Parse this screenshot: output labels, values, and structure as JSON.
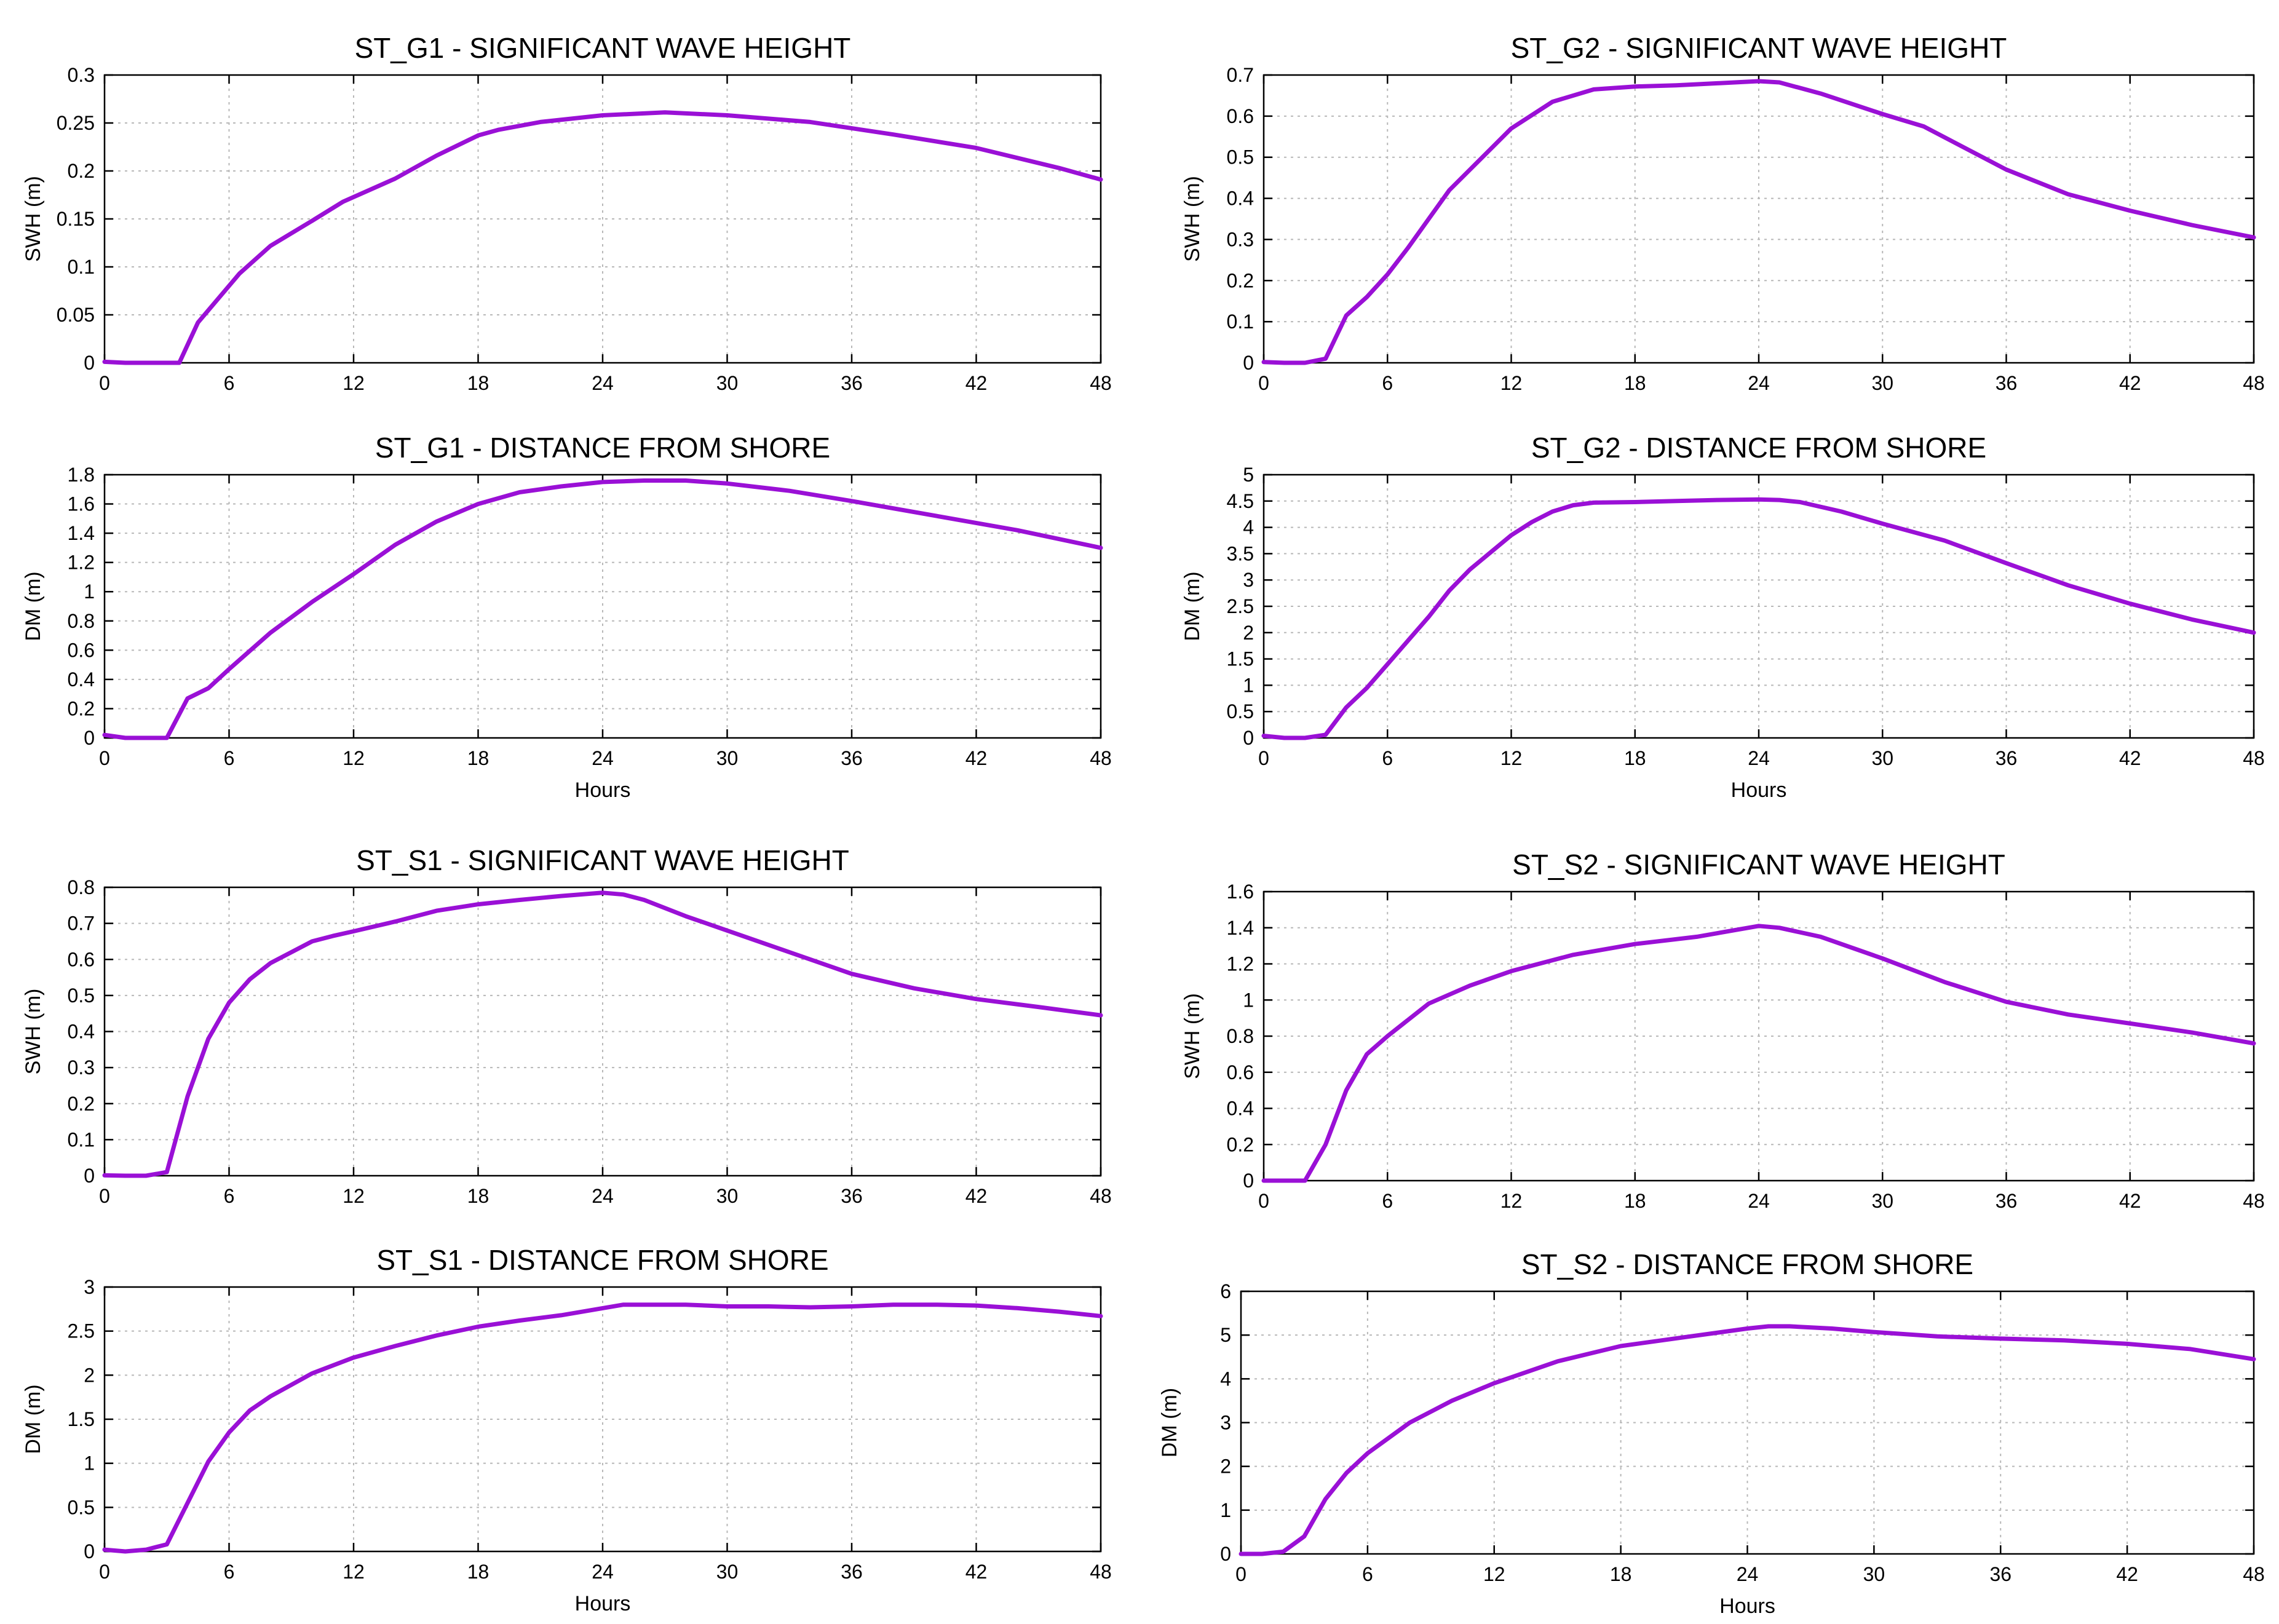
{
  "figure": {
    "line_color": "#9a10d6"
  },
  "chart_data": [
    {
      "id": "st_g1_swh",
      "type": "line",
      "title": "ST_G1 - SIGNIFICANT WAVE HEIGHT",
      "ylabel": "SWH (m)",
      "xlabel": "",
      "xlim": [
        0,
        48
      ],
      "ylim": [
        0,
        0.3
      ],
      "xticks": [
        0,
        6,
        12,
        18,
        24,
        30,
        36,
        42,
        48
      ],
      "yticks": [
        0,
        0.05,
        0.1,
        0.15,
        0.2,
        0.25,
        0.3
      ],
      "grid": true,
      "series": [
        {
          "name": "SWH",
          "x": [
            0,
            1,
            2,
            3,
            3.6,
            4.5,
            6.5,
            8,
            10,
            11.5,
            14,
            16,
            18,
            19,
            21,
            24,
            27,
            30,
            34,
            38,
            42,
            46,
            48
          ],
          "y": [
            0.001,
            0,
            0,
            0,
            0,
            0.042,
            0.093,
            0.122,
            0.148,
            0.168,
            0.192,
            0.216,
            0.237,
            0.243,
            0.251,
            0.258,
            0.261,
            0.258,
            0.251,
            0.238,
            0.224,
            0.203,
            0.191
          ]
        }
      ]
    },
    {
      "id": "st_g2_swh",
      "type": "line",
      "title": "ST_G2 - SIGNIFICANT WAVE HEIGHT",
      "ylabel": "SWH (m)",
      "xlabel": "",
      "xlim": [
        0,
        48
      ],
      "ylim": [
        0,
        0.7
      ],
      "xticks": [
        0,
        6,
        12,
        18,
        24,
        30,
        36,
        42,
        48
      ],
      "yticks": [
        0,
        0.1,
        0.2,
        0.3,
        0.4,
        0.5,
        0.6,
        0.7
      ],
      "grid": true,
      "series": [
        {
          "name": "SWH",
          "x": [
            0,
            1,
            2,
            3,
            4,
            5,
            6,
            7,
            8,
            9,
            10,
            12,
            14,
            16,
            18,
            20,
            22,
            24,
            25,
            27,
            30,
            32,
            36,
            39,
            42,
            45,
            48
          ],
          "y": [
            0.002,
            0,
            0,
            0.01,
            0.115,
            0.16,
            0.215,
            0.28,
            0.35,
            0.42,
            0.47,
            0.57,
            0.635,
            0.665,
            0.672,
            0.675,
            0.68,
            0.685,
            0.682,
            0.655,
            0.605,
            0.575,
            0.47,
            0.41,
            0.37,
            0.335,
            0.305
          ]
        }
      ]
    },
    {
      "id": "st_g1_dm",
      "type": "line",
      "title": "ST_G1 -  DISTANCE FROM SHORE",
      "ylabel": "DM (m)",
      "xlabel": "Hours",
      "xlim": [
        0,
        48
      ],
      "ylim": [
        0,
        1.8
      ],
      "xticks": [
        0,
        6,
        12,
        18,
        24,
        30,
        36,
        42,
        48
      ],
      "yticks": [
        0,
        0.2,
        0.4,
        0.6,
        0.8,
        1,
        1.2,
        1.4,
        1.6,
        1.8
      ],
      "grid": true,
      "series": [
        {
          "name": "DM",
          "x": [
            0,
            1,
            2,
            3,
            4,
            5,
            6,
            8,
            10,
            12,
            14,
            16,
            18,
            20,
            22,
            24,
            26,
            28,
            30,
            33,
            36,
            40,
            44,
            48
          ],
          "y": [
            0.02,
            0,
            0,
            0,
            0.27,
            0.34,
            0.47,
            0.72,
            0.93,
            1.12,
            1.32,
            1.48,
            1.6,
            1.68,
            1.72,
            1.75,
            1.76,
            1.76,
            1.74,
            1.69,
            1.62,
            1.52,
            1.42,
            1.3
          ]
        }
      ]
    },
    {
      "id": "st_g2_dm",
      "type": "line",
      "title": "ST_G2 -  DISTANCE FROM SHORE",
      "ylabel": "DM (m)",
      "xlabel": "Hours",
      "xlim": [
        0,
        48
      ],
      "ylim": [
        0,
        5
      ],
      "xticks": [
        0,
        6,
        12,
        18,
        24,
        30,
        36,
        42,
        48
      ],
      "yticks": [
        0,
        0.5,
        1,
        1.5,
        2,
        2.5,
        3,
        3.5,
        4,
        4.5,
        5
      ],
      "grid": true,
      "series": [
        {
          "name": "DM",
          "x": [
            0,
            1,
            2,
            3,
            4,
            5,
            6,
            7,
            8,
            9,
            10,
            12,
            13,
            14,
            15,
            16,
            18,
            20,
            22,
            24,
            25,
            26,
            28,
            30,
            33,
            36,
            39,
            42,
            45,
            48
          ],
          "y": [
            0.04,
            0,
            0,
            0.06,
            0.58,
            0.95,
            1.4,
            1.85,
            2.3,
            2.8,
            3.2,
            3.85,
            4.1,
            4.3,
            4.42,
            4.47,
            4.48,
            4.5,
            4.52,
            4.53,
            4.52,
            4.48,
            4.3,
            4.07,
            3.75,
            3.32,
            2.9,
            2.55,
            2.25,
            2.0
          ]
        }
      ]
    },
    {
      "id": "st_s1_swh",
      "type": "line",
      "title": "ST_S1 - SIGNIFICANT WAVE HEIGHT",
      "ylabel": "SWH (m)",
      "xlabel": "",
      "xlim": [
        0,
        48
      ],
      "ylim": [
        0,
        0.8
      ],
      "xticks": [
        0,
        6,
        12,
        18,
        24,
        30,
        36,
        42,
        48
      ],
      "yticks": [
        0,
        0.1,
        0.2,
        0.3,
        0.4,
        0.5,
        0.6,
        0.7,
        0.8
      ],
      "grid": true,
      "series": [
        {
          "name": "SWH",
          "x": [
            0,
            1,
            2,
            3,
            4,
            5,
            6,
            7,
            8,
            9,
            10,
            11,
            12,
            14,
            16,
            18,
            20,
            22,
            24,
            25,
            26,
            28,
            30,
            33,
            36,
            39,
            42,
            45,
            48
          ],
          "y": [
            0.001,
            0,
            0,
            0.01,
            0.22,
            0.38,
            0.48,
            0.545,
            0.59,
            0.62,
            0.65,
            0.665,
            0.678,
            0.705,
            0.735,
            0.753,
            0.765,
            0.776,
            0.785,
            0.78,
            0.765,
            0.72,
            0.68,
            0.62,
            0.56,
            0.52,
            0.49,
            0.468,
            0.445
          ]
        }
      ]
    },
    {
      "id": "st_s2_swh",
      "type": "line",
      "title": "ST_S2 - SIGNIFICANT WAVE HEIGHT",
      "ylabel": "SWH (m)",
      "xlabel": "",
      "xlim": [
        0,
        48
      ],
      "ylim": [
        0,
        1.6
      ],
      "xticks": [
        0,
        6,
        12,
        18,
        24,
        30,
        36,
        42,
        48
      ],
      "yticks": [
        0,
        0.2,
        0.4,
        0.6,
        0.8,
        1,
        1.2,
        1.4,
        1.6
      ],
      "grid": true,
      "series": [
        {
          "name": "SWH",
          "x": [
            0,
            1,
            2,
            3,
            4,
            5,
            6,
            8,
            10,
            12,
            15,
            18,
            21,
            24,
            25,
            27,
            30,
            33,
            36,
            39,
            42,
            45,
            48
          ],
          "y": [
            0,
            0,
            0,
            0.2,
            0.5,
            0.7,
            0.8,
            0.98,
            1.08,
            1.16,
            1.25,
            1.31,
            1.35,
            1.41,
            1.4,
            1.35,
            1.23,
            1.1,
            0.99,
            0.92,
            0.87,
            0.82,
            0.76
          ]
        }
      ]
    },
    {
      "id": "st_s1_dm",
      "type": "line",
      "title": "ST_S1 -  DISTANCE FROM SHORE",
      "ylabel": "DM (m)",
      "xlabel": "Hours",
      "xlim": [
        0,
        48
      ],
      "ylim": [
        0,
        3
      ],
      "xticks": [
        0,
        6,
        12,
        18,
        24,
        30,
        36,
        42,
        48
      ],
      "yticks": [
        0,
        0.5,
        1,
        1.5,
        2,
        2.5,
        3
      ],
      "grid": true,
      "series": [
        {
          "name": "DM",
          "x": [
            0,
            1,
            2,
            3,
            4,
            5,
            6,
            7,
            8,
            10,
            12,
            14,
            16,
            18,
            20,
            22,
            24,
            25,
            26,
            28,
            30,
            32,
            34,
            36,
            38,
            40,
            42,
            44,
            46,
            48
          ],
          "y": [
            0.02,
            0,
            0.02,
            0.08,
            0.55,
            1.02,
            1.35,
            1.6,
            1.76,
            2.02,
            2.2,
            2.33,
            2.45,
            2.55,
            2.62,
            2.68,
            2.76,
            2.8,
            2.8,
            2.8,
            2.78,
            2.78,
            2.77,
            2.78,
            2.8,
            2.8,
            2.79,
            2.76,
            2.72,
            2.67
          ]
        }
      ]
    },
    {
      "id": "st_s2_dm",
      "type": "line",
      "title": "ST_S2 -  DISTANCE FROM SHORE",
      "ylabel": "DM (m)",
      "xlabel": "Hours",
      "xlim": [
        0,
        48
      ],
      "ylim": [
        0,
        6
      ],
      "xticks": [
        0,
        6,
        12,
        18,
        24,
        30,
        36,
        42,
        48
      ],
      "yticks": [
        0,
        1,
        2,
        3,
        4,
        5,
        6
      ],
      "grid": true,
      "series": [
        {
          "name": "DM",
          "x": [
            0,
            1,
            2,
            3,
            4,
            5,
            6,
            8,
            10,
            12,
            15,
            18,
            21,
            24,
            25,
            26,
            28,
            30,
            33,
            36,
            39,
            42,
            45,
            48
          ],
          "y": [
            0,
            0,
            0.05,
            0.4,
            1.25,
            1.85,
            2.3,
            3.0,
            3.5,
            3.9,
            4.4,
            4.75,
            4.95,
            5.15,
            5.2,
            5.2,
            5.15,
            5.07,
            4.97,
            4.92,
            4.88,
            4.8,
            4.68,
            4.45
          ]
        }
      ]
    }
  ]
}
